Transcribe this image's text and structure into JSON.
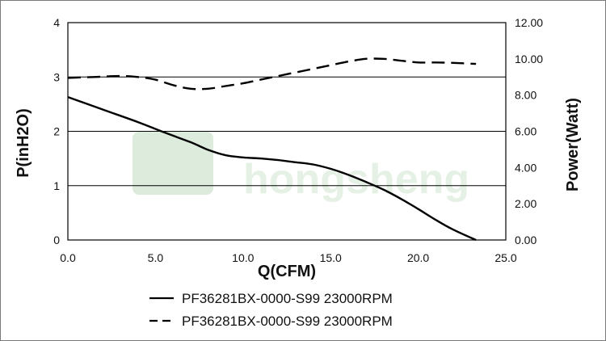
{
  "watermark": {
    "text": "hongsheng",
    "color": "#dcebdc"
  },
  "chart_data": {
    "type": "line",
    "xlabel": "Q(CFM)",
    "ylabel": "P(inH2O)",
    "y2label": "Power(Watt)",
    "xlim": [
      0,
      25
    ],
    "ylim": [
      0,
      4
    ],
    "y2lim": [
      0,
      12
    ],
    "x_ticks": [
      "0.0",
      "5.0",
      "10.0",
      "15.0",
      "20.0",
      "25.0"
    ],
    "y_ticks": [
      "0",
      "1",
      "2",
      "3",
      "4"
    ],
    "y2_ticks": [
      "0.00",
      "2.00",
      "4.00",
      "6.00",
      "8.00",
      "10.00",
      "12.00"
    ],
    "grid": "horizontal",
    "legend_position": "bottom",
    "series": [
      {
        "name": "PF36281BX-0000-S99 23000RPM",
        "axis": "left",
        "style": "solid",
        "color": "#000000",
        "x": [
          0,
          2,
          4,
          5.5,
          7,
          8,
          9,
          10,
          11,
          12,
          13,
          14,
          15,
          16,
          17,
          18,
          19,
          20,
          21,
          22,
          23.3
        ],
        "y": [
          2.63,
          2.4,
          2.17,
          1.98,
          1.8,
          1.66,
          1.56,
          1.52,
          1.5,
          1.47,
          1.43,
          1.39,
          1.31,
          1.2,
          1.07,
          0.93,
          0.76,
          0.57,
          0.37,
          0.19,
          0
        ]
      },
      {
        "name": "PF36281BX-0000-S99 23000RPM",
        "axis": "right",
        "style": "dashed",
        "color": "#000000",
        "x": [
          0,
          1.5,
          3,
          4,
          5,
          6,
          7,
          8,
          9,
          10,
          11,
          12,
          13,
          14,
          15,
          16,
          17,
          18,
          19,
          20,
          21,
          22,
          23.3
        ],
        "y": [
          8.95,
          9.0,
          9.05,
          9.0,
          8.85,
          8.55,
          8.35,
          8.35,
          8.5,
          8.65,
          8.85,
          9.05,
          9.25,
          9.45,
          9.65,
          9.85,
          10.0,
          10.0,
          9.9,
          9.8,
          9.8,
          9.78,
          9.72
        ]
      }
    ]
  }
}
